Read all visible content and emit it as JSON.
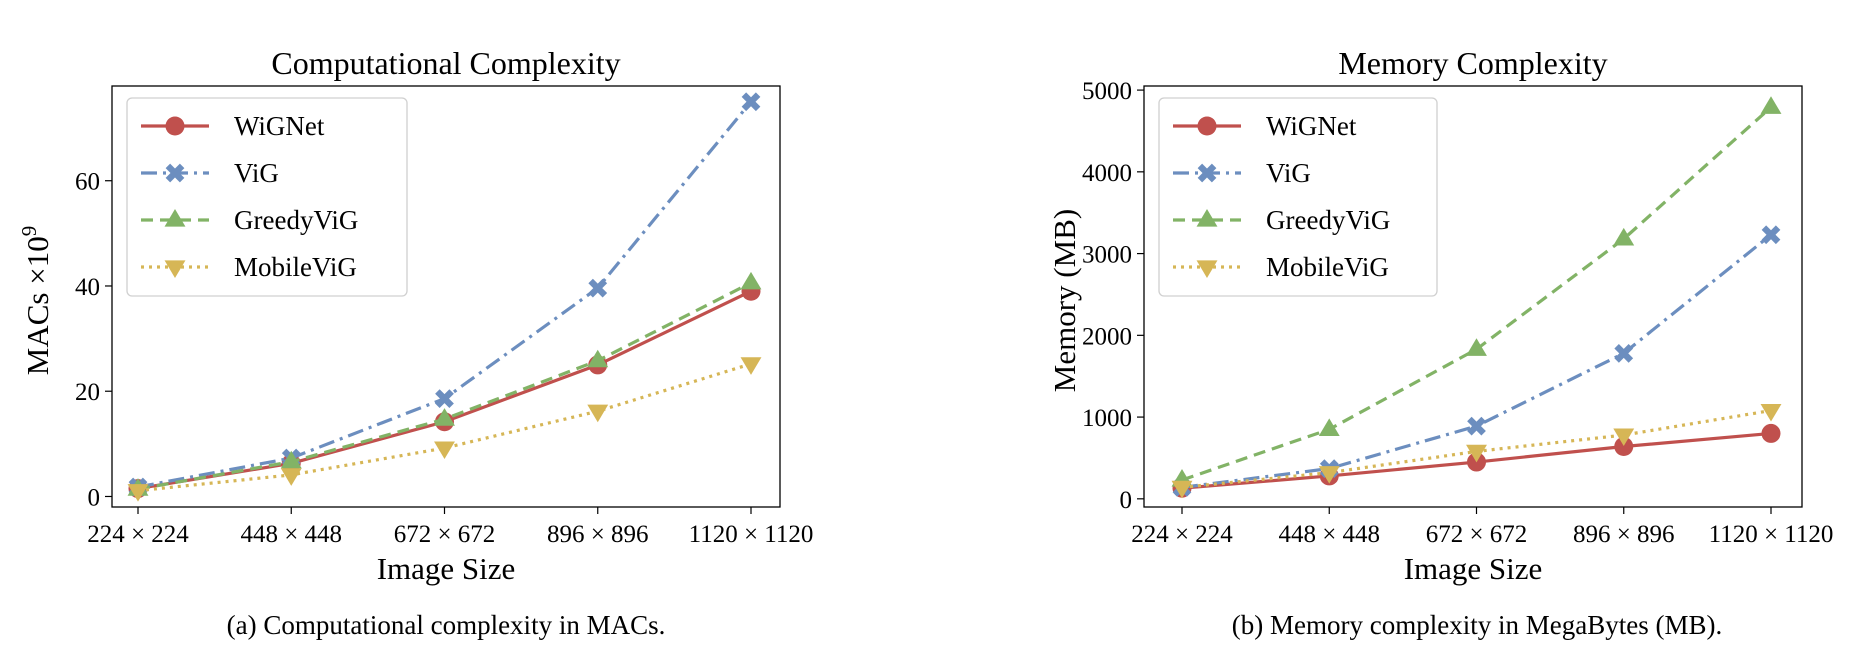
{
  "colors": {
    "WiGNet": "#c0504d",
    "ViG": "#6c8ebf",
    "GreedyViG": "#82b366",
    "MobileViG": "#d6b656"
  },
  "chart_data": [
    {
      "type": "line",
      "title": "Computational Complexity",
      "xlabel": "Image Size",
      "ylabel": "MACs ×10",
      "ylabel_exp": "9",
      "categories": [
        "224 × 224",
        "448 × 448",
        "672 × 672",
        "896 × 896",
        "1120 × 1120"
      ],
      "ylim": [
        -2,
        78
      ],
      "yticks": [
        "0",
        "20",
        "40",
        "60"
      ],
      "legend_position": "top-left",
      "grid": false,
      "caption": "(a) Computational complexity in MACs.",
      "series": [
        {
          "name": "WiGNet",
          "marker": "circle",
          "dash": "solid",
          "values": [
            1.5,
            6.3,
            14.2,
            25,
            39
          ]
        },
        {
          "name": "ViG",
          "marker": "x",
          "dash": "dashdot",
          "values": [
            1.8,
            7.3,
            18.6,
            39.6,
            75
          ]
        },
        {
          "name": "GreedyViG",
          "marker": "triangle-up",
          "dash": "dashed",
          "values": [
            1.4,
            6.6,
            14.7,
            25.8,
            40.6
          ]
        },
        {
          "name": "MobileViG",
          "marker": "triangle-down",
          "dash": "dotted",
          "values": [
            1.1,
            4.1,
            9.2,
            16.2,
            25.2
          ]
        }
      ]
    },
    {
      "type": "line",
      "title": "Memory Complexity",
      "xlabel": "Image Size",
      "ylabel": "Memory (MB)",
      "ylabel_exp": "",
      "categories": [
        "224 × 224",
        "448 × 448",
        "672 × 672",
        "896 × 896",
        "1120 × 1120"
      ],
      "ylim": [
        -100,
        5050
      ],
      "yticks": [
        "0",
        "1000",
        "2000",
        "3000",
        "4000",
        "5000"
      ],
      "legend_position": "top-left",
      "grid": false,
      "caption": "(b) Memory complexity in MegaBytes (MB).",
      "series": [
        {
          "name": "WiGNet",
          "marker": "circle",
          "dash": "solid",
          "values": [
            130,
            280,
            450,
            640,
            800
          ]
        },
        {
          "name": "ViG",
          "marker": "x",
          "dash": "dashdot",
          "values": [
            140,
            370,
            890,
            1780,
            3230
          ]
        },
        {
          "name": "GreedyViG",
          "marker": "triangle-up",
          "dash": "dashed",
          "values": [
            230,
            850,
            1830,
            3180,
            4790
          ]
        },
        {
          "name": "MobileViG",
          "marker": "triangle-down",
          "dash": "dotted",
          "values": [
            140,
            320,
            580,
            780,
            1080
          ]
        }
      ]
    }
  ]
}
